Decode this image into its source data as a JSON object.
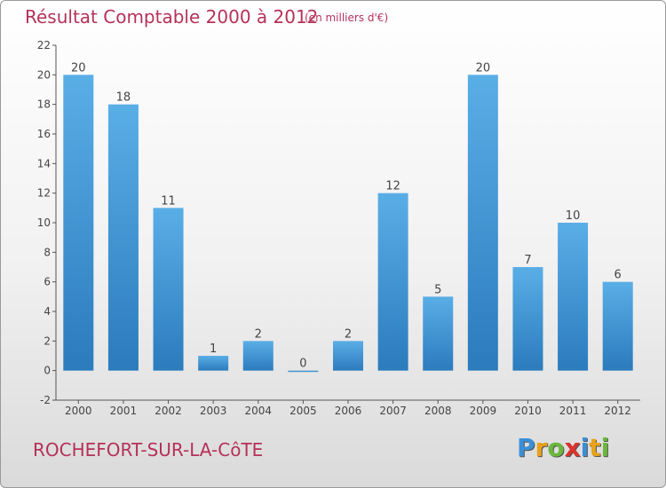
{
  "header": {
    "title": "Résultat Comptable 2000 à 2012",
    "subtitle": "(en milliers d'€)"
  },
  "footer": {
    "commune": "ROCHEFORT-SUR-LA-CôTE",
    "logo_letters": [
      {
        "char": "P",
        "color": "#3b8fd6"
      },
      {
        "char": "r",
        "color": "#e8a21c"
      },
      {
        "char": "o",
        "color": "#6bb83c"
      },
      {
        "char": "x",
        "color": "#d9342b"
      },
      {
        "char": "i",
        "color": "#3b8fd6"
      },
      {
        "char": "t",
        "color": "#e8a21c"
      },
      {
        "char": "i",
        "color": "#6bb83c"
      }
    ]
  },
  "chart_data": {
    "type": "bar",
    "categories": [
      "2000",
      "2001",
      "2002",
      "2003",
      "2004",
      "2005",
      "2006",
      "2007",
      "2008",
      "2009",
      "2010",
      "2011",
      "2012"
    ],
    "values": [
      20,
      18,
      11,
      1,
      2,
      0,
      2,
      12,
      5,
      20,
      7,
      10,
      6
    ],
    "data_labels": [
      "20",
      "18",
      "11",
      "1",
      "2",
      "0",
      "2",
      "12",
      "5",
      "20",
      "7",
      "10",
      "6"
    ],
    "title": "Résultat Comptable 2000 à 2012",
    "ylim": [
      -2,
      22
    ],
    "yticks": [
      -2,
      0,
      2,
      4,
      6,
      8,
      10,
      12,
      14,
      16,
      18,
      20,
      22
    ],
    "grid": false,
    "bar_color_top": "#5aaee6",
    "bar_color_bottom": "#2b7bbd"
  }
}
